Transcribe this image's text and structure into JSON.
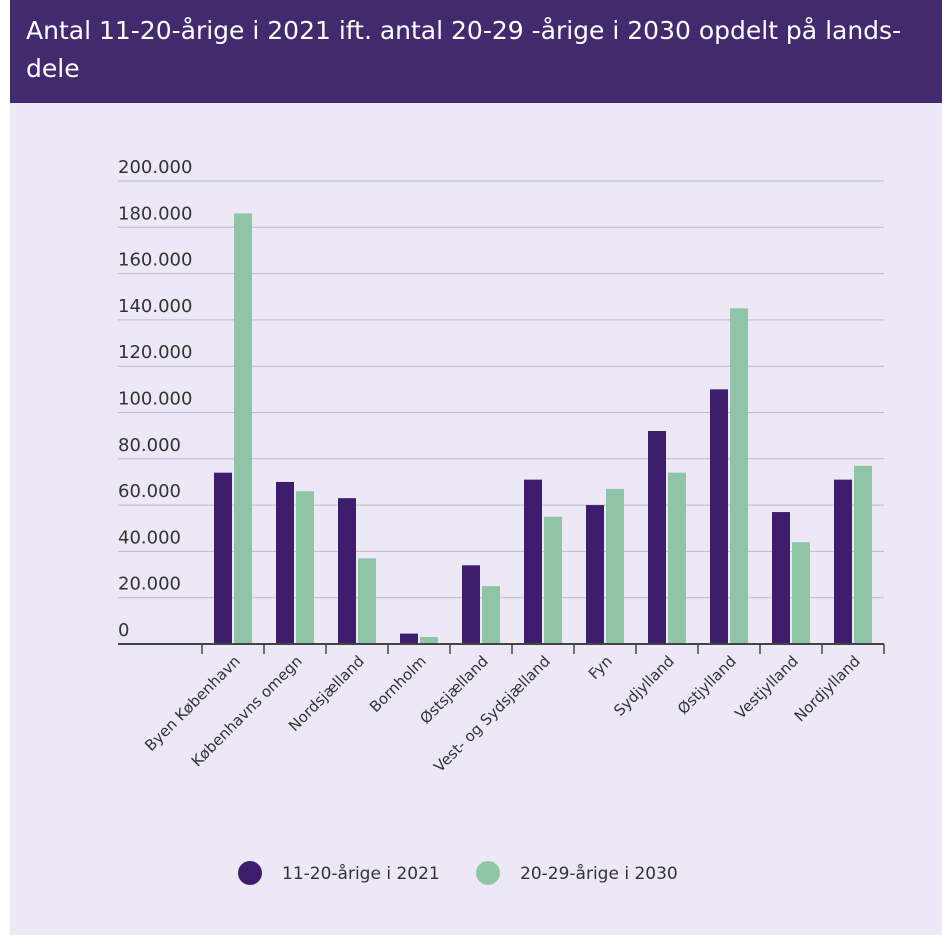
{
  "header": {
    "title": "Antal 11-20-årige i 2021 ift. antal 20-29 -årige i 2030 opdelt på lands-dele"
  },
  "colors": {
    "series_2021": "#3f1d6d",
    "series_2030": "#8fc5a6",
    "header_bg": "#412a6e",
    "background": "#ece8f5"
  },
  "chart_data": {
    "type": "bar",
    "title": "Antal 11-20-årige i 2021 ift. antal 20-29 -årige i 2030 opdelt på lands-dele",
    "xlabel": "",
    "ylabel": "",
    "ylim": [
      0,
      200000
    ],
    "yticks": [
      0,
      20000,
      40000,
      60000,
      80000,
      100000,
      120000,
      140000,
      160000,
      180000,
      200000
    ],
    "ytick_labels": [
      "0",
      "20.000",
      "40.000",
      "60.000",
      "80.000",
      "100.000",
      "120.000",
      "140.000",
      "160.000",
      "180.000",
      "200.000"
    ],
    "grid": true,
    "legend_position": "bottom",
    "categories": [
      "Byen København",
      "Københavns omegn",
      "Nordsjælland",
      "Bornholm",
      "Østsjælland",
      "Vest- og Sydsjælland",
      "Fyn",
      "Sydjylland",
      "Østjylland",
      "Vestjylland",
      "Nordjylland"
    ],
    "series": [
      {
        "name": "11-20-årige i 2021",
        "values": [
          74000,
          70000,
          63000,
          4500,
          34000,
          71000,
          60000,
          92000,
          110000,
          57000,
          71000
        ]
      },
      {
        "name": "20-29-årige i 2030",
        "values": [
          186000,
          66000,
          37000,
          3000,
          25000,
          55000,
          67000,
          74000,
          145000,
          44000,
          77000
        ]
      }
    ]
  }
}
